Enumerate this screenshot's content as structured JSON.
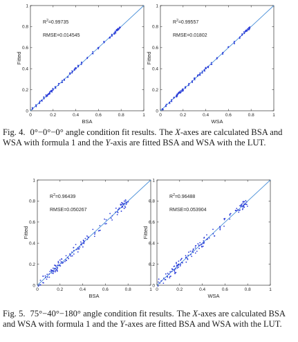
{
  "figures": [
    {
      "label": "Fig. 4.",
      "angle": "0°−0°−0° angle condition fit results.",
      "text_1": "The ",
      "x_word": "X",
      "text_2": "-axes are calculated BSA and WSA with formula 1 and the ",
      "y_word": "Y",
      "text_3": "-axis are fitted BSA and WSA with the LUT."
    },
    {
      "label": "Fig. 5.",
      "angle": "75°−40°−180° angle condition fit results.",
      "text_1": "The ",
      "x_word": "X",
      "text_2": "-axes are calculated BSA and WSA with formula 1 and the ",
      "y_word": "Y",
      "text_3": "-axes are fitted BSA and WSA with the LUT."
    }
  ],
  "chart_data": [
    {
      "type": "scatter",
      "xlabel": "BSA",
      "ylabel": "Fitted",
      "xlim": [
        0,
        1
      ],
      "ylim": [
        0,
        1
      ],
      "xticks": [
        "0",
        "0.2",
        "0.4",
        "0.6",
        "0.8",
        "1"
      ],
      "yticks": [
        "0",
        "0.2",
        "0.4",
        "0.6",
        "0.8",
        "1"
      ],
      "r2": "0.99735",
      "rmse": "RMSE=0.014545",
      "series": [
        {
          "x": [
            0.02,
            0.05,
            0.08,
            0.1,
            0.12,
            0.14,
            0.15,
            0.16,
            0.17,
            0.18,
            0.19,
            0.2,
            0.22,
            0.25,
            0.28,
            0.3,
            0.33,
            0.35,
            0.37,
            0.39,
            0.4,
            0.42,
            0.45,
            0.5,
            0.55,
            0.6,
            0.65,
            0.7,
            0.72,
            0.74,
            0.75,
            0.76,
            0.77,
            0.78,
            0.79
          ],
          "y": [
            0.02,
            0.05,
            0.08,
            0.1,
            0.12,
            0.14,
            0.15,
            0.16,
            0.17,
            0.18,
            0.19,
            0.2,
            0.22,
            0.25,
            0.28,
            0.3,
            0.33,
            0.35,
            0.37,
            0.39,
            0.4,
            0.42,
            0.45,
            0.5,
            0.55,
            0.6,
            0.65,
            0.7,
            0.72,
            0.74,
            0.75,
            0.76,
            0.77,
            0.78,
            0.79
          ]
        }
      ],
      "fit_line": [
        [
          0,
          0
        ],
        [
          1,
          1
        ]
      ],
      "color": "#2b3bd8",
      "line_color": "#4a90d9"
    },
    {
      "type": "scatter",
      "xlabel": "WSA",
      "ylabel": "Fitted",
      "xlim": [
        0,
        1
      ],
      "ylim": [
        0,
        1
      ],
      "xticks": [
        "0",
        "0.2",
        "0.4",
        "0.6",
        "0.8",
        "1"
      ],
      "yticks": [
        "0",
        "0.2",
        "0.4",
        "0.6",
        "0.8",
        "1"
      ],
      "r2": "0.99557",
      "rmse": "RMSE=0.01802",
      "series": [
        {
          "x": [
            0.02,
            0.05,
            0.08,
            0.1,
            0.12,
            0.14,
            0.15,
            0.16,
            0.17,
            0.18,
            0.19,
            0.2,
            0.22,
            0.25,
            0.28,
            0.3,
            0.33,
            0.35,
            0.37,
            0.39,
            0.4,
            0.42,
            0.45,
            0.5,
            0.55,
            0.6,
            0.65,
            0.7,
            0.72,
            0.74,
            0.75,
            0.76,
            0.77,
            0.78,
            0.79
          ],
          "y": [
            0.02,
            0.05,
            0.08,
            0.1,
            0.12,
            0.14,
            0.15,
            0.16,
            0.17,
            0.18,
            0.19,
            0.2,
            0.22,
            0.25,
            0.28,
            0.3,
            0.33,
            0.35,
            0.37,
            0.39,
            0.4,
            0.42,
            0.45,
            0.5,
            0.55,
            0.6,
            0.65,
            0.7,
            0.72,
            0.74,
            0.75,
            0.76,
            0.77,
            0.78,
            0.79
          ]
        }
      ],
      "fit_line": [
        [
          0,
          0
        ],
        [
          1,
          1
        ]
      ],
      "color": "#2b3bd8",
      "line_color": "#4a90d9"
    },
    {
      "type": "scatter",
      "xlabel": "BSA",
      "ylabel": "Fitted",
      "xlim": [
        0,
        1
      ],
      "ylim": [
        0,
        1
      ],
      "xticks": [
        "0",
        "0.2",
        "0.4",
        "0.6",
        "0.8",
        "1"
      ],
      "yticks": [
        "0",
        "0.2",
        "0.4",
        "0.6",
        "0.8",
        "1"
      ],
      "r2": "0.96439",
      "rmse": "RMSE=0.050267",
      "series": [
        {
          "x": [
            0.02,
            0.05,
            0.08,
            0.1,
            0.12,
            0.14,
            0.15,
            0.16,
            0.17,
            0.18,
            0.19,
            0.2,
            0.22,
            0.25,
            0.28,
            0.3,
            0.33,
            0.35,
            0.37,
            0.39,
            0.4,
            0.42,
            0.45,
            0.5,
            0.55,
            0.6,
            0.65,
            0.7,
            0.72,
            0.74,
            0.75,
            0.76,
            0.77,
            0.78,
            0.79
          ],
          "y": [
            0.02,
            0.05,
            0.08,
            0.1,
            0.12,
            0.14,
            0.15,
            0.16,
            0.17,
            0.18,
            0.19,
            0.2,
            0.22,
            0.25,
            0.28,
            0.3,
            0.33,
            0.35,
            0.37,
            0.39,
            0.4,
            0.42,
            0.45,
            0.5,
            0.55,
            0.6,
            0.65,
            0.7,
            0.72,
            0.74,
            0.75,
            0.76,
            0.77,
            0.78,
            0.79
          ]
        }
      ],
      "fit_line": [
        [
          0,
          0
        ],
        [
          1,
          1
        ]
      ],
      "color": "#2b3bd8",
      "line_color": "#4a90d9"
    },
    {
      "type": "scatter",
      "xlabel": "WSA",
      "ylabel": "Fitted",
      "xlim": [
        0,
        1
      ],
      "ylim": [
        0,
        1
      ],
      "xticks": [
        "0",
        "0.2",
        "0.4",
        "0.6",
        "0.8",
        "1"
      ],
      "yticks": [
        "0",
        "0.2",
        "0.4",
        "0.6",
        "0.8",
        "1"
      ],
      "r2": "0.96488",
      "rmse": "RMSE=0.053904",
      "series": [
        {
          "x": [
            0.02,
            0.05,
            0.08,
            0.1,
            0.12,
            0.14,
            0.15,
            0.16,
            0.17,
            0.18,
            0.19,
            0.2,
            0.22,
            0.25,
            0.28,
            0.3,
            0.33,
            0.35,
            0.37,
            0.39,
            0.4,
            0.42,
            0.45,
            0.5,
            0.55,
            0.6,
            0.65,
            0.7,
            0.72,
            0.74,
            0.75,
            0.76,
            0.77,
            0.78,
            0.79
          ],
          "y": [
            0.02,
            0.05,
            0.08,
            0.1,
            0.12,
            0.14,
            0.15,
            0.16,
            0.17,
            0.18,
            0.19,
            0.2,
            0.22,
            0.25,
            0.28,
            0.3,
            0.33,
            0.35,
            0.37,
            0.39,
            0.4,
            0.42,
            0.45,
            0.5,
            0.55,
            0.6,
            0.65,
            0.7,
            0.72,
            0.74,
            0.75,
            0.76,
            0.77,
            0.78,
            0.79
          ]
        }
      ],
      "fit_line": [
        [
          0,
          0
        ],
        [
          1,
          1
        ]
      ],
      "color": "#2b3bd8",
      "line_color": "#4a90d9"
    }
  ]
}
